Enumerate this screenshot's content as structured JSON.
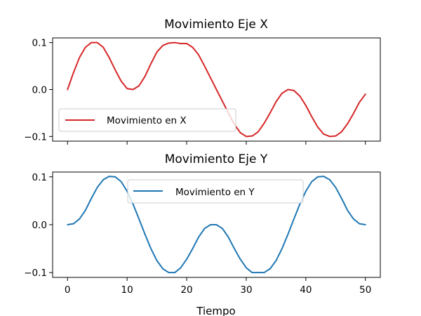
{
  "chart_data": [
    {
      "type": "line",
      "title": "Movimiento Eje X",
      "xlabel": "",
      "ylabel": "",
      "xlim": [
        -2.5,
        52.5
      ],
      "ylim": [
        -0.11,
        0.11
      ],
      "x_ticks": [
        0,
        10,
        20,
        30,
        40,
        50
      ],
      "x_tick_labels_visible": false,
      "y_ticks": [
        -0.1,
        0.0,
        0.1
      ],
      "y_tick_labels": [
        "−0.1",
        "0.0",
        "0.1"
      ],
      "grid": false,
      "legend_position": "lower-left",
      "series": [
        {
          "name": "Movimiento en X",
          "color": "#d62728",
          "x": [
            0,
            1,
            2,
            3,
            4,
            5,
            6,
            7,
            8,
            9,
            10,
            11,
            12,
            13,
            14,
            15,
            16,
            17,
            18,
            19,
            20,
            21,
            22,
            23,
            24,
            25,
            26,
            27,
            28,
            29,
            30,
            31,
            32,
            33,
            34,
            35,
            36,
            37,
            38,
            39,
            40,
            41,
            42,
            43,
            44,
            45,
            46,
            47,
            48,
            49,
            50
          ],
          "values": [
            0.0,
            0.036,
            0.068,
            0.09,
            0.1,
            0.1,
            0.09,
            0.068,
            0.042,
            0.018,
            0.002,
            0.0,
            0.008,
            0.028,
            0.055,
            0.08,
            0.094,
            0.099,
            0.1,
            0.098,
            0.098,
            0.09,
            0.074,
            0.05,
            0.025,
            0.0,
            -0.025,
            -0.05,
            -0.074,
            -0.092,
            -0.1,
            -0.099,
            -0.09,
            -0.072,
            -0.05,
            -0.026,
            -0.008,
            0.0,
            -0.002,
            -0.014,
            -0.034,
            -0.058,
            -0.08,
            -0.095,
            -0.1,
            -0.099,
            -0.09,
            -0.073,
            -0.051,
            -0.027,
            -0.01
          ]
        }
      ]
    },
    {
      "type": "line",
      "title": "Movimiento Eje Y",
      "xlabel": "Tiempo",
      "ylabel": "",
      "xlim": [
        -2.5,
        52.5
      ],
      "ylim": [
        -0.11,
        0.11
      ],
      "x_ticks": [
        0,
        10,
        20,
        30,
        40,
        50
      ],
      "x_tick_labels": [
        "0",
        "10",
        "20",
        "30",
        "40",
        "50"
      ],
      "y_ticks": [
        -0.1,
        0.0,
        0.1
      ],
      "y_tick_labels": [
        "−0.1",
        "0.0",
        "0.1"
      ],
      "grid": false,
      "legend_position": "upper-center",
      "series": [
        {
          "name": "Movimiento en Y",
          "color": "#1f77b4",
          "x": [
            0,
            1,
            2,
            3,
            4,
            5,
            6,
            7,
            8,
            9,
            10,
            11,
            12,
            13,
            14,
            15,
            16,
            17,
            18,
            19,
            20,
            21,
            22,
            23,
            24,
            25,
            26,
            27,
            28,
            29,
            30,
            31,
            32,
            33,
            34,
            35,
            36,
            37,
            38,
            39,
            40,
            41,
            42,
            43,
            44,
            45,
            46,
            47,
            48,
            49,
            50
          ],
          "values": [
            0.0,
            0.002,
            0.012,
            0.03,
            0.055,
            0.078,
            0.094,
            0.101,
            0.1,
            0.09,
            0.07,
            0.043,
            0.012,
            -0.02,
            -0.05,
            -0.075,
            -0.092,
            -0.1,
            -0.1,
            -0.09,
            -0.072,
            -0.05,
            -0.026,
            -0.008,
            0.0,
            0.0,
            -0.008,
            -0.026,
            -0.05,
            -0.072,
            -0.09,
            -0.1,
            -0.1,
            -0.1,
            -0.092,
            -0.075,
            -0.05,
            -0.02,
            0.012,
            0.043,
            0.07,
            0.09,
            0.1,
            0.101,
            0.094,
            0.078,
            0.055,
            0.03,
            0.012,
            0.002,
            0.0
          ]
        }
      ]
    }
  ]
}
